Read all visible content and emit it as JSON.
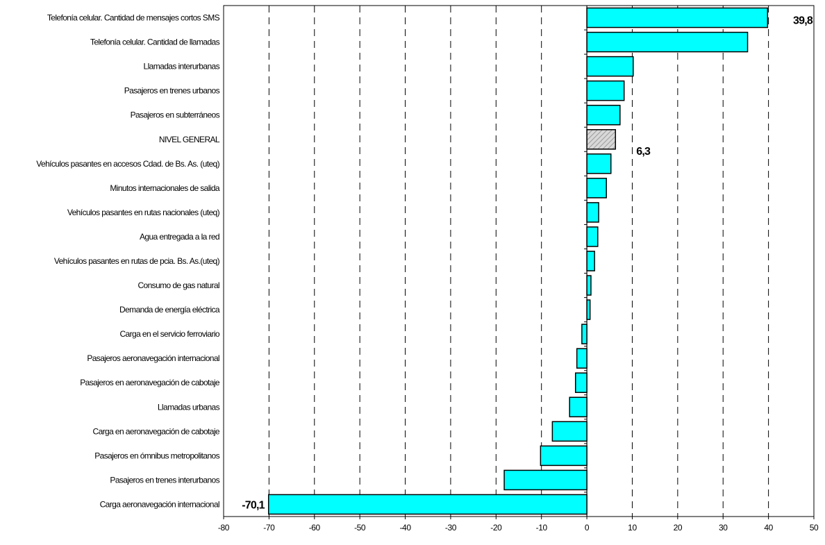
{
  "chart_data": {
    "type": "bar",
    "orientation": "horizontal",
    "title": "",
    "xlabel": "",
    "ylabel": "",
    "xlim": [
      -80,
      50
    ],
    "x_ticks": [
      "-80",
      "-70",
      "-60",
      "-50",
      "-40",
      "-30",
      "-20",
      "-10",
      "0",
      "10",
      "20",
      "30",
      "40",
      "50"
    ],
    "grid": "vertical dashed",
    "bar_color": "#00FFFF",
    "highlight_color": "#C0C0C0",
    "categories": [
      "Telefonía celular. Cantidad de mensajes cortos SMS",
      "Telefonía celular. Cantidad de llamadas",
      "Llamadas interurbanas",
      "Pasajeros en trenes urbanos",
      "Pasajeros en subterráneos",
      "NIVEL GENERAL",
      "Vehículos pasantes en accesos Cdad. de Bs. As. (uteq)",
      "Minutos internacionales de salida",
      "Vehículos pasantes en rutas nacionales (uteq)",
      "Agua entregada a la red",
      "Vehículos pasantes en rutas de pcia. Bs. As.(uteq)",
      "Consumo de gas natural",
      "Demanda de energía eléctrica",
      "Carga en el servicio ferroviario",
      "Pasajeros aeronavegación internacional",
      "Pasajeros en aeronavegación de cabotaje",
      "Llamadas urbanas",
      "Carga en aeronavegación de cabotaje",
      "Pasajeros en ómnibus metropolitanos",
      "Pasajeros en trenes interurbanos",
      "Carga aeronavegación internacional"
    ],
    "values": [
      39.8,
      35.4,
      10.2,
      8.2,
      7.3,
      6.3,
      5.3,
      4.3,
      2.6,
      2.4,
      1.7,
      0.9,
      0.7,
      -1.1,
      -2.2,
      -2.5,
      -3.8,
      -7.6,
      -10.2,
      -18.2,
      -70.1
    ],
    "highlight_category": "NIVEL GENERAL",
    "data_labels": [
      {
        "category": "Telefonía celular. Cantidad de mensajes cortos SMS",
        "text": "39,8"
      },
      {
        "category": "NIVEL GENERAL",
        "text": "6,3"
      },
      {
        "category": "Carga aeronavegación internacional",
        "text": "-70,1"
      }
    ]
  }
}
